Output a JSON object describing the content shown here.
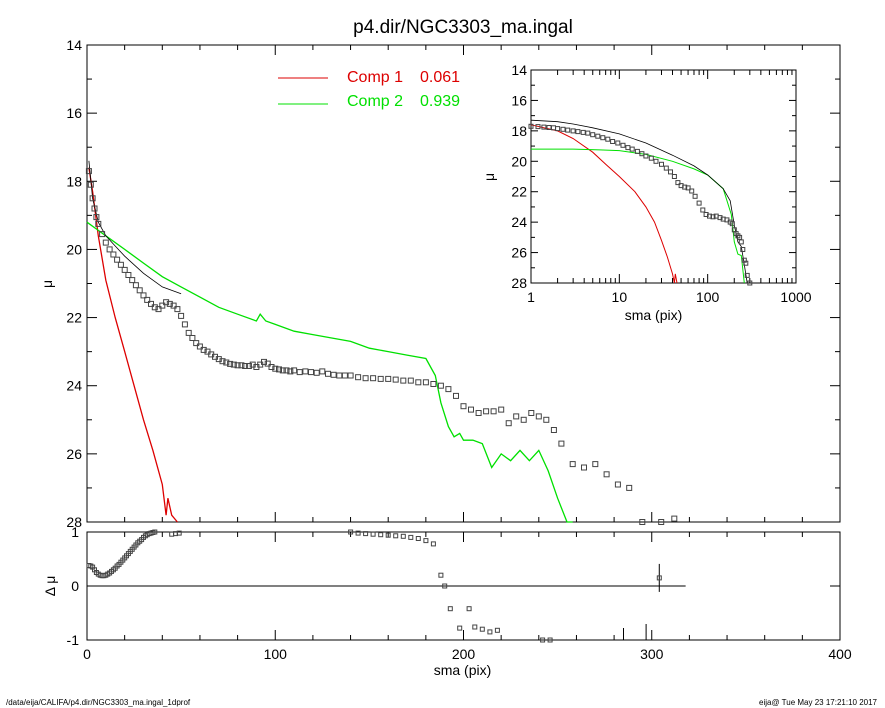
{
  "title": "p4.dir/NGC3303_ma.ingal",
  "footer_left": "/data/eija/CALIFA/p4.dir/NGC3303_ma.ingal_1dprof",
  "footer_right": "eija@  Tue May 23 17:21:10 2017",
  "colors": {
    "comp1": "#dd0000",
    "comp2": "#00e000",
    "data": "#000000"
  },
  "chart_data": [
    {
      "id": "main",
      "type": "line",
      "title": "p4.dir/NGC3303_ma.ingal",
      "xlabel": "",
      "ylabel": "μ",
      "xlim": [
        0,
        400
      ],
      "ylim": [
        28,
        14
      ],
      "y_reversed": true,
      "yticks": [
        14,
        16,
        18,
        20,
        22,
        24,
        26,
        28
      ],
      "ytick_labels": [
        "14",
        "16",
        "18",
        "20",
        "22",
        "24",
        "26",
        "28"
      ],
      "legend": [
        {
          "label": "Comp 1",
          "value": "0.061"
        },
        {
          "label": "Comp 2",
          "value": "0.939"
        }
      ],
      "legend_position": "top-center",
      "series": [
        {
          "name": "Comp 1",
          "style": "line",
          "x": [
            1,
            3,
            6,
            10,
            15,
            20,
            25,
            30,
            35,
            40,
            42,
            43,
            45,
            48
          ],
          "y": [
            17.6,
            18.3,
            19.6,
            20.9,
            22.0,
            23.0,
            24.0,
            25.0,
            25.9,
            26.9,
            27.8,
            27.3,
            27.8,
            28.0
          ]
        },
        {
          "name": "Comp 2",
          "style": "line",
          "x": [
            0,
            5,
            10,
            20,
            30,
            40,
            50,
            60,
            70,
            80,
            90,
            92,
            95,
            100,
            110,
            120,
            130,
            140,
            150,
            160,
            170,
            180,
            185,
            188,
            192,
            195,
            198,
            200,
            205,
            210,
            215,
            220,
            225,
            230,
            235,
            240,
            245,
            250,
            255,
            258
          ],
          "y": [
            19.2,
            19.4,
            19.6,
            20.0,
            20.4,
            20.8,
            21.1,
            21.4,
            21.7,
            21.9,
            22.1,
            21.9,
            22.1,
            22.2,
            22.4,
            22.5,
            22.6,
            22.7,
            22.9,
            23.0,
            23.1,
            23.2,
            23.7,
            24.5,
            25.2,
            25.5,
            25.4,
            25.6,
            25.6,
            25.7,
            26.4,
            26.0,
            26.2,
            25.9,
            26.2,
            25.9,
            26.5,
            27.3,
            28.0,
            28.1
          ]
        },
        {
          "name": "Model",
          "style": "line",
          "x": [
            1,
            3,
            6,
            10,
            15,
            20,
            30,
            40,
            50
          ],
          "y": [
            17.4,
            18.5,
            19.2,
            19.6,
            19.9,
            20.2,
            20.7,
            21.1,
            21.3
          ]
        },
        {
          "name": "Data",
          "style": "markers",
          "x": [
            1,
            2,
            3,
            4,
            5,
            6,
            8,
            10,
            12,
            14,
            16,
            18,
            20,
            22,
            24,
            26,
            28,
            30,
            32,
            34,
            36,
            38,
            40,
            42,
            44,
            46,
            48,
            50,
            52,
            54,
            56,
            58,
            60,
            62,
            64,
            66,
            68,
            70,
            72,
            74,
            76,
            78,
            80,
            82,
            84,
            86,
            88,
            90,
            92,
            94,
            96,
            98,
            100,
            102,
            104,
            106,
            108,
            110,
            113,
            116,
            119,
            122,
            125,
            128,
            131,
            134,
            137,
            140,
            144,
            148,
            152,
            156,
            160,
            164,
            168,
            172,
            176,
            180,
            184,
            188,
            192,
            196,
            200,
            204,
            208,
            212,
            216,
            220,
            224,
            228,
            232,
            236,
            240,
            244,
            248,
            252,
            258,
            264,
            270,
            276,
            282,
            288,
            295,
            305,
            312
          ],
          "y": [
            17.7,
            18.1,
            18.5,
            18.8,
            19.05,
            19.25,
            19.55,
            19.8,
            20.0,
            20.15,
            20.3,
            20.45,
            20.6,
            20.75,
            20.9,
            21.05,
            21.2,
            21.35,
            21.48,
            21.6,
            21.7,
            21.75,
            21.65,
            21.55,
            21.6,
            21.65,
            21.75,
            21.95,
            22.2,
            22.45,
            22.6,
            22.75,
            22.85,
            22.95,
            23.0,
            23.08,
            23.15,
            23.22,
            23.28,
            23.32,
            23.36,
            23.38,
            23.4,
            23.4,
            23.42,
            23.42,
            23.38,
            23.45,
            23.38,
            23.3,
            23.35,
            23.45,
            23.5,
            23.52,
            23.55,
            23.55,
            23.58,
            23.55,
            23.6,
            23.58,
            23.6,
            23.62,
            23.58,
            23.65,
            23.68,
            23.7,
            23.7,
            23.7,
            23.75,
            23.78,
            23.78,
            23.8,
            23.8,
            23.82,
            23.85,
            23.85,
            23.9,
            23.9,
            23.95,
            24.0,
            24.1,
            24.3,
            24.6,
            24.7,
            24.8,
            24.75,
            24.75,
            24.7,
            25.1,
            24.9,
            25.0,
            24.8,
            24.9,
            25.0,
            25.3,
            25.7,
            26.3,
            26.4,
            26.3,
            26.6,
            26.9,
            27.0,
            28.0,
            28.0,
            27.9
          ]
        }
      ]
    },
    {
      "id": "residual",
      "type": "scatter",
      "xlabel": "sma (pix)",
      "ylabel": "Δ μ",
      "xlim": [
        0,
        400
      ],
      "ylim": [
        -1,
        1
      ],
      "yticks": [
        -1,
        0,
        1
      ],
      "ytick_labels": [
        "-1",
        "0",
        "1"
      ],
      "xticks": [
        0,
        100,
        200,
        300,
        400
      ],
      "xtick_labels": [
        "0",
        "100",
        "200",
        "300",
        "400"
      ],
      "reference_line": {
        "y": 0,
        "x_end": 318
      },
      "series": [
        {
          "name": "Residual",
          "style": "markers",
          "x": [
            1,
            2,
            3,
            4,
            5,
            6,
            7,
            8,
            9,
            10,
            11,
            12,
            13,
            14,
            15,
            16,
            17,
            18,
            19,
            20,
            21,
            22,
            23,
            24,
            25,
            26,
            27,
            28,
            29,
            30,
            31,
            32,
            33,
            34,
            35,
            36,
            45,
            47,
            49,
            140,
            144,
            148,
            152,
            156,
            160,
            164,
            168,
            172,
            176,
            180,
            184,
            188,
            190,
            193,
            198,
            203,
            206,
            210,
            214,
            218,
            242,
            246,
            304
          ],
          "y": [
            0.38,
            0.37,
            0.35,
            0.3,
            0.25,
            0.22,
            0.2,
            0.19,
            0.19,
            0.2,
            0.22,
            0.24,
            0.27,
            0.3,
            0.33,
            0.37,
            0.4,
            0.44,
            0.48,
            0.52,
            0.56,
            0.6,
            0.64,
            0.68,
            0.72,
            0.76,
            0.8,
            0.83,
            0.86,
            0.9,
            0.93,
            0.95,
            0.97,
            0.98,
            0.99,
            1.0,
            0.96,
            0.97,
            0.98,
            1.0,
            0.98,
            0.97,
            0.96,
            0.95,
            0.94,
            0.93,
            0.92,
            0.9,
            0.88,
            0.84,
            0.78,
            0.2,
            0.0,
            -0.42,
            -0.78,
            -0.42,
            -0.76,
            -0.8,
            -0.85,
            -0.82,
            -1.0,
            -1.0,
            0.15
          ]
        }
      ]
    },
    {
      "id": "inset",
      "type": "line",
      "xlabel": "sma (pix)",
      "ylabel": "μ",
      "xscale": "log",
      "xlim": [
        1,
        1000
      ],
      "ylim": [
        28,
        14
      ],
      "y_reversed": true,
      "xticks": [
        1,
        10,
        100,
        1000
      ],
      "xtick_labels": [
        "1",
        "10",
        "100",
        "1000"
      ],
      "yticks": [
        14,
        16,
        18,
        20,
        22,
        24,
        26,
        28
      ],
      "ytick_labels": [
        "14",
        "16",
        "18",
        "20",
        "22",
        "24",
        "26",
        "28"
      ],
      "series": [
        {
          "name": "Comp 1",
          "style": "line",
          "x": [
            1,
            2,
            3,
            5,
            7,
            10,
            15,
            20,
            25,
            30,
            35,
            40,
            42,
            43,
            45
          ],
          "y": [
            17.6,
            18.0,
            18.5,
            19.4,
            20.2,
            21.0,
            22.0,
            23.0,
            24.0,
            25.2,
            26.3,
            27.4,
            28.0,
            27.4,
            28.0
          ]
        },
        {
          "name": "Comp 2",
          "style": "line",
          "x": [
            1,
            3,
            6,
            10,
            20,
            40,
            70,
            100,
            150,
            185,
            200,
            220,
            240,
            260
          ],
          "y": [
            19.2,
            19.2,
            19.25,
            19.3,
            19.55,
            20.0,
            20.5,
            20.9,
            21.8,
            23.5,
            25.3,
            26.1,
            26.2,
            28.0
          ]
        },
        {
          "name": "Model",
          "style": "line",
          "x": [
            1,
            2,
            3,
            5,
            10,
            20,
            40,
            70,
            100,
            150,
            180,
            200,
            220,
            240,
            260,
            280
          ],
          "y": [
            17.3,
            17.4,
            17.55,
            17.8,
            18.2,
            18.8,
            19.6,
            20.3,
            20.9,
            21.8,
            22.6,
            24.2,
            25.3,
            25.6,
            26.8,
            28.0
          ]
        },
        {
          "name": "Data",
          "style": "markers",
          "x": [
            1,
            1.2,
            1.4,
            1.6,
            1.8,
            2,
            2.3,
            2.6,
            3,
            3.4,
            3.9,
            4.4,
            5,
            5.7,
            6.5,
            7.4,
            8.4,
            9.6,
            11,
            12.5,
            14,
            16,
            18,
            20,
            23,
            26,
            30,
            34,
            38,
            42,
            46,
            50,
            55,
            60,
            66,
            72,
            80,
            88,
            96,
            105,
            115,
            125,
            138,
            150,
            165,
            180,
            190,
            200,
            210,
            220,
            230,
            240,
            250,
            260,
            270,
            280,
            300
          ],
          "y": [
            17.7,
            17.72,
            17.75,
            17.78,
            17.8,
            17.85,
            17.9,
            17.95,
            18.0,
            18.05,
            18.1,
            18.15,
            18.25,
            18.35,
            18.45,
            18.55,
            18.7,
            18.8,
            18.95,
            19.1,
            19.2,
            19.35,
            19.5,
            19.65,
            19.8,
            20.0,
            20.2,
            20.45,
            20.7,
            21.0,
            21.4,
            21.6,
            21.7,
            21.75,
            21.95,
            22.3,
            22.75,
            23.2,
            23.5,
            23.6,
            23.65,
            23.6,
            23.7,
            23.8,
            23.85,
            24.0,
            24.1,
            24.5,
            24.75,
            24.9,
            25.0,
            25.3,
            25.8,
            26.5,
            26.7,
            27.5,
            28.0
          ]
        }
      ]
    }
  ]
}
